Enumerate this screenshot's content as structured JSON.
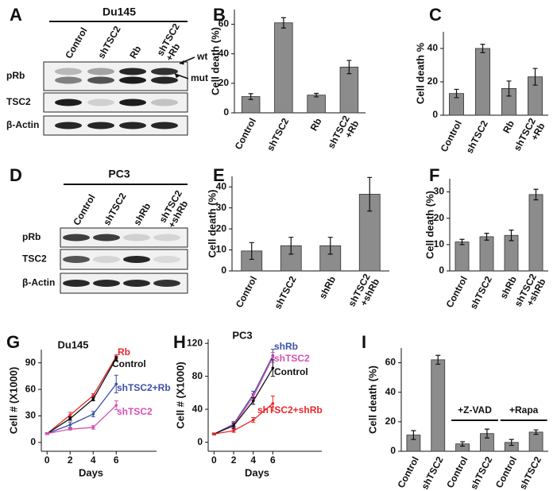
{
  "blots": [
    {
      "panel": "A",
      "cell_line": "Du145",
      "lanes": [
        "Control",
        "shTSC2",
        "Rb",
        "shTSC2\n+Rb"
      ],
      "rows": [
        "pRb",
        "TSC2",
        "β-Actin"
      ],
      "markers": [
        "wt",
        "mut"
      ]
    },
    {
      "panel": "D",
      "cell_line": "PC3",
      "lanes": [
        "Control",
        "shTSC2",
        "shRb",
        "shTSC2\n+shRb"
      ],
      "rows": [
        "pRb",
        "TSC2",
        "β-Actin"
      ]
    }
  ],
  "chart_data": [
    {
      "type": "bar",
      "panel": "B",
      "ylabel": "Cell death (%)",
      "categories": [
        "Control",
        "shTSC2",
        "Rb",
        "shTSC2\n+Rb"
      ],
      "values": [
        11,
        61,
        12,
        31
      ],
      "errors": [
        2,
        3.5,
        1.2,
        4.5
      ],
      "color": "#8c8c8c",
      "ylim": [
        0,
        70
      ],
      "yticks": [
        0,
        20,
        40,
        60
      ]
    },
    {
      "type": "bar",
      "panel": "C",
      "ylabel": "Cell death %",
      "categories": [
        "Control",
        "shTSC2",
        "Rb",
        "shTSC2\n+Rb"
      ],
      "values": [
        13,
        40,
        16,
        23
      ],
      "errors": [
        2.5,
        2.5,
        4.5,
        5
      ],
      "color": "#8c8c8c",
      "ylim": [
        0,
        50
      ],
      "yticks": [
        0,
        20,
        40
      ]
    },
    {
      "type": "bar",
      "panel": "E",
      "ylabel": "Cell death (%)",
      "categories": [
        "Control",
        "shTSC2",
        "shRb",
        "shTSC2\n+shRb"
      ],
      "values": [
        9.5,
        12,
        12,
        36.5
      ],
      "errors": [
        4,
        4,
        4,
        8
      ],
      "color": "#8c8c8c",
      "ylim": [
        0,
        45
      ],
      "yticks": [
        0,
        10,
        20,
        30,
        40
      ]
    },
    {
      "type": "bar",
      "panel": "F",
      "ylabel": "Cell death (%)",
      "categories": [
        "Control",
        "shTSC2",
        "shRb",
        "shTSC2\n+shRb"
      ],
      "values": [
        11,
        13,
        13.5,
        29
      ],
      "errors": [
        1,
        1.3,
        2,
        2
      ],
      "color": "#8c8c8c",
      "ylim": [
        0,
        35
      ],
      "yticks": [
        0,
        10,
        20,
        30
      ]
    },
    {
      "type": "line",
      "panel": "G",
      "title": "Du145",
      "xlabel": "Days",
      "ylabel": "Cell # (X1000)",
      "x": [
        0,
        2,
        4,
        6
      ],
      "xlim": [
        -0.5,
        9.5
      ],
      "xticks": [
        0,
        2,
        4,
        6
      ],
      "ylim": [
        -10,
        105
      ],
      "yticks": [
        0,
        30,
        60,
        90
      ],
      "series": [
        {
          "name": "Rb",
          "color": "#e8292b",
          "values": [
            10,
            31,
            53,
            97
          ],
          "errors": [
            1,
            3,
            2,
            2
          ]
        },
        {
          "name": "Control",
          "color": "#111111",
          "values": [
            10,
            27,
            49,
            95
          ],
          "errors": [
            1,
            2,
            2,
            2
          ]
        },
        {
          "name": "shTSC2+Rb",
          "color": "#3b4fa8",
          "values": [
            10,
            20,
            32,
            66
          ],
          "errors": [
            1,
            3,
            3,
            10
          ]
        },
        {
          "name": "shTSC2",
          "color": "#d850b4",
          "values": [
            10,
            15,
            17,
            42
          ],
          "errors": [
            1,
            1,
            2,
            5
          ]
        }
      ]
    },
    {
      "type": "line",
      "panel": "H",
      "title": "PC3",
      "xlabel": "Days",
      "ylabel": "Cell # (X1000)",
      "x": [
        0,
        2,
        4,
        6
      ],
      "xlim": [
        -0.6,
        11
      ],
      "xticks": [
        0,
        2,
        4,
        6
      ],
      "ylim": [
        -11,
        125
      ],
      "yticks": [
        0,
        40,
        80,
        120
      ],
      "series": [
        {
          "name": "shRb",
          "color": "#3b4fa8",
          "values": [
            10,
            22,
            58,
            105
          ],
          "errors": [
            1,
            3,
            4,
            8
          ]
        },
        {
          "name": "shTSC2",
          "color": "#d850b4",
          "values": [
            10,
            21,
            55,
            103
          ],
          "errors": [
            1,
            3,
            4,
            6
          ]
        },
        {
          "name": "Control",
          "color": "#111111",
          "values": [
            10,
            20,
            50,
            90
          ],
          "errors": [
            1,
            3,
            4,
            10
          ]
        },
        {
          "name": "shTSC2+shRb",
          "color": "#e8292b",
          "values": [
            10,
            14,
            27,
            47
          ],
          "errors": [
            1,
            2,
            3,
            9
          ]
        }
      ]
    },
    {
      "type": "bar",
      "panel": "I",
      "ylabel": "Cell death (%)",
      "categories": [
        "Control",
        "shTSC2",
        "Control",
        "shTSC2",
        "Control",
        "shTSC2"
      ],
      "values": [
        11,
        62,
        5,
        12,
        6,
        13
      ],
      "errors": [
        3,
        3,
        1.5,
        3,
        2,
        1.5
      ],
      "color": "#8c8c8c",
      "ylim": [
        0,
        70
      ],
      "yticks": [
        0,
        20,
        40,
        60
      ],
      "annotations": [
        "+Z-VAD",
        "+Rapa"
      ]
    }
  ]
}
